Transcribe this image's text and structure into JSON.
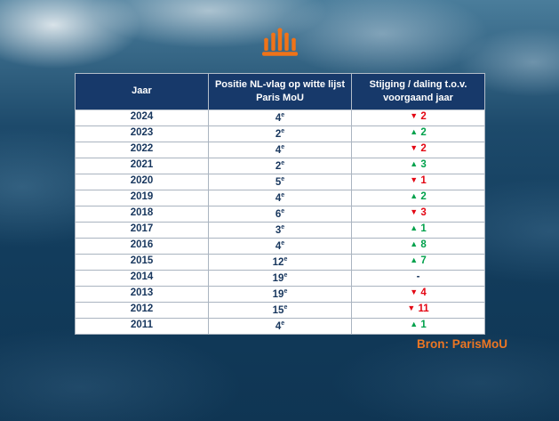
{
  "colors": {
    "up": "#00a14b",
    "down": "#e30613",
    "header_bg": "#17396a",
    "body_text": "#17365d",
    "accent_orange": "#ec7623"
  },
  "icons": {
    "crown": "crown-bar-icon"
  },
  "table": {
    "ordinal_suffix": "e"
  },
  "source": {
    "label": "Bron: ParisMoU"
  },
  "chart_data": {
    "type": "table",
    "columns": [
      "Jaar",
      "Positie NL-vlag op witte lijst Paris MoU",
      "Stijging / daling t.o.v. voorgaand jaar"
    ],
    "rows": [
      {
        "year": "2024",
        "position": "4",
        "direction": "down",
        "change": "2"
      },
      {
        "year": "2023",
        "position": "2",
        "direction": "up",
        "change": "2"
      },
      {
        "year": "2022",
        "position": "4",
        "direction": "down",
        "change": "2"
      },
      {
        "year": "2021",
        "position": "2",
        "direction": "up",
        "change": "3"
      },
      {
        "year": "2020",
        "position": "5",
        "direction": "down",
        "change": "1"
      },
      {
        "year": "2019",
        "position": "4",
        "direction": "up",
        "change": "2"
      },
      {
        "year": "2018",
        "position": "6",
        "direction": "down",
        "change": "3"
      },
      {
        "year": "2017",
        "position": "3",
        "direction": "up",
        "change": "1"
      },
      {
        "year": "2016",
        "position": "4",
        "direction": "up",
        "change": "8"
      },
      {
        "year": "2015",
        "position": "12",
        "direction": "up",
        "change": "7"
      },
      {
        "year": "2014",
        "position": "19",
        "direction": "none",
        "change": "-"
      },
      {
        "year": "2013",
        "position": "19",
        "direction": "down",
        "change": "4"
      },
      {
        "year": "2012",
        "position": "15",
        "direction": "down",
        "change": "11"
      },
      {
        "year": "2011",
        "position": "4",
        "direction": "up",
        "change": "1"
      }
    ]
  }
}
